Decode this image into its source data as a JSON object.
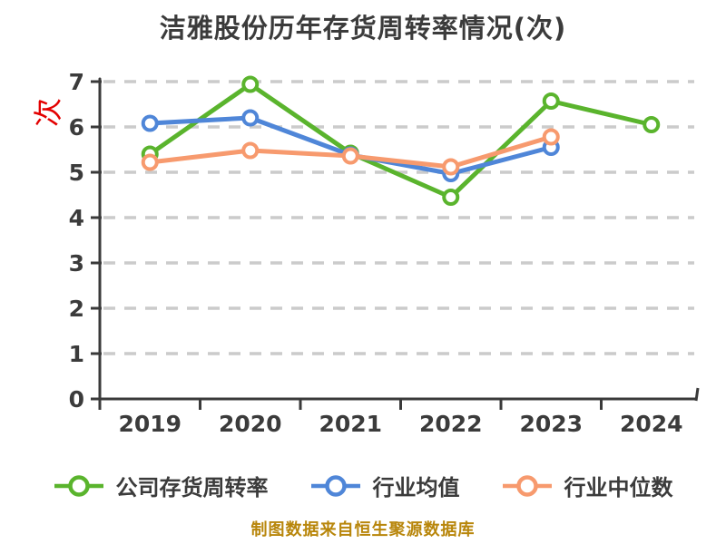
{
  "title": "洁雅股份历年存货周转率情况(次)",
  "y_axis": {
    "unit_label": "次",
    "unit_label_color": "#e30000",
    "tick_labels": [
      "0",
      "1",
      "2",
      "3",
      "4",
      "5",
      "6",
      "7"
    ]
  },
  "x_axis": {
    "tick_labels": [
      "2019",
      "2020",
      "2021",
      "2022",
      "2023",
      "2024"
    ]
  },
  "legend": {
    "items": [
      "公司存货周转率",
      "行业均值",
      "行业中位数"
    ]
  },
  "footer": {
    "source_note": "制图数据来自恒生聚源数据库",
    "color": "#b8860b"
  },
  "colors": {
    "title_text": "#3b3b3b",
    "axis": "#3a3a3a",
    "tick_text": "#3b3b3b",
    "gridline": "#cbcbcb",
    "marker_fill": "#ffffff",
    "company_series": "#5ab42d",
    "industry_avg_series": "#4f86d8",
    "industry_median_series": "#f79a6e"
  },
  "chart_data": {
    "type": "line",
    "style": "xkcd-sketch",
    "title": "洁雅股份历年存货周转率情况(次)",
    "xlabel": "",
    "ylabel": "次",
    "categories": [
      "2019",
      "2020",
      "2021",
      "2022",
      "2023",
      "2024"
    ],
    "series": [
      {
        "name": "公司存货周转率",
        "color": "#5ab42d",
        "values": [
          5.4,
          6.94,
          5.42,
          4.45,
          6.57,
          6.05
        ]
      },
      {
        "name": "行业均值",
        "color": "#4f86d8",
        "values": [
          6.08,
          6.2,
          5.38,
          4.97,
          5.55,
          null
        ]
      },
      {
        "name": "行业中位数",
        "color": "#f79a6e",
        "values": [
          5.22,
          5.48,
          5.36,
          5.12,
          5.78,
          null
        ]
      }
    ],
    "ylim": [
      0,
      7
    ],
    "yticks": [
      0,
      1,
      2,
      3,
      4,
      5,
      6,
      7
    ],
    "grid": "horizontal-dashed",
    "legend_position": "bottom",
    "markers": "open-circle"
  }
}
